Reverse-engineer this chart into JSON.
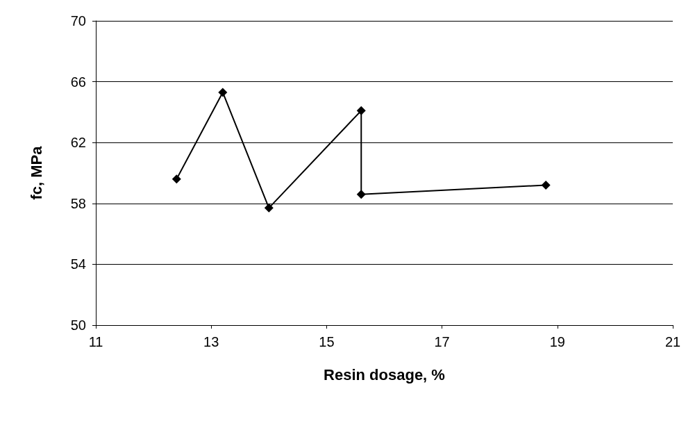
{
  "chart_data": {
    "type": "line",
    "xlabel": "Resin dosage, %",
    "ylabel": "fc, MPa",
    "x": [
      12.4,
      13.2,
      14.0,
      15.6,
      15.6,
      18.8
    ],
    "series": [
      {
        "color": "#000000",
        "values": [
          59.6,
          65.3,
          57.7,
          64.1,
          58.6,
          59.2
        ]
      }
    ],
    "xlim": [
      11,
      21
    ],
    "xticks": [
      11,
      13,
      15,
      17,
      19,
      21
    ],
    "ylim": [
      50,
      70
    ],
    "yticks": [
      50,
      54,
      58,
      62,
      66,
      70
    ],
    "grid": "y",
    "marker": "diamond",
    "line_style": "solid"
  }
}
